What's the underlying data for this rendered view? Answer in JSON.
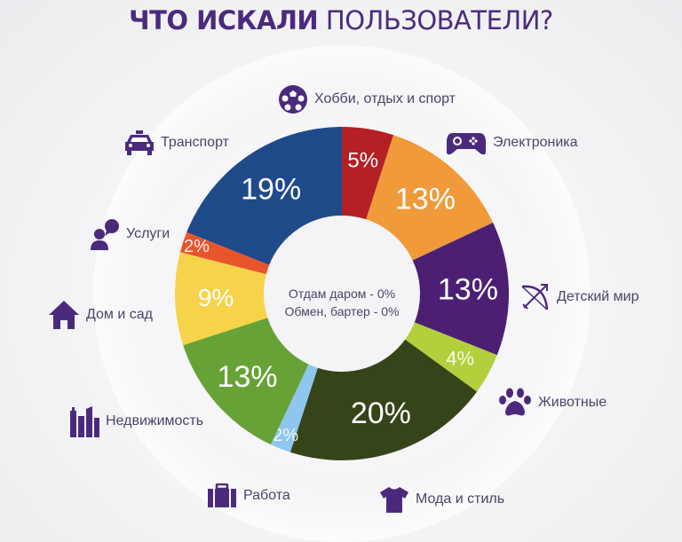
{
  "title": {
    "bold": "ЧТО ИСКАЛИ",
    "light": "ПОЛЬЗОВАТЕЛИ?"
  },
  "center": {
    "line1": "Отдам даром - 0%",
    "line2": "Обмен, бартер - 0%"
  },
  "colors": {
    "accent": "#4b2a7e",
    "text": "#4a4466"
  },
  "legend": [
    {
      "label": "Хобби, отдых и спорт",
      "icon": "soccer-ball-icon"
    },
    {
      "label": "Электроника",
      "icon": "gamepad-icon"
    },
    {
      "label": "Детский мир",
      "icon": "bow-arrow-icon"
    },
    {
      "label": "Животные",
      "icon": "paw-icon"
    },
    {
      "label": "Мода и стиль",
      "icon": "tshirt-icon"
    },
    {
      "label": "Работа",
      "icon": "briefcase-icon"
    },
    {
      "label": "Недвижимость",
      "icon": "buildings-icon"
    },
    {
      "label": "Дом и сад",
      "icon": "house-icon"
    },
    {
      "label": "Услуги",
      "icon": "person-speech-icon"
    },
    {
      "label": "Транспорт",
      "icon": "taxi-icon"
    }
  ],
  "chart_data": {
    "type": "pie",
    "subtype": "donut",
    "title": "ЧТО ИСКАЛИ ПОЛЬЗОВАТЕЛИ?",
    "categories": [
      "Хобби, отдых и спорт",
      "Электроника",
      "Детский мир",
      "Животные",
      "Мода и стиль",
      "Работа",
      "Недвижимость",
      "Дом и сад",
      "Услуги",
      "Транспорт"
    ],
    "values": [
      5,
      13,
      13,
      4,
      20,
      2,
      13,
      9,
      2,
      19
    ],
    "labels": [
      "5%",
      "13%",
      "13%",
      "4%",
      "20%",
      "2%",
      "13%",
      "9%",
      "2%",
      "19%"
    ],
    "colors": [
      "#b52025",
      "#f09a3a",
      "#4c1f73",
      "#b3cf3c",
      "#36441a",
      "#8fc6ef",
      "#67a236",
      "#f7d34a",
      "#e9552a",
      "#1f4a8a"
    ],
    "start_angle": "12 o'clock",
    "direction": "clockwise",
    "annotations": [
      "Отдам даром - 0%",
      "Обмен, бартер - 0%"
    ],
    "unit": "%"
  }
}
